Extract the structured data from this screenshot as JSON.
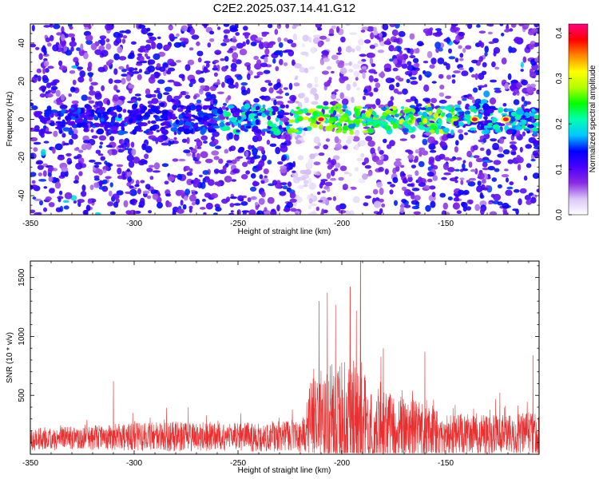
{
  "figure": {
    "title": "C2E2.2025.037.14.41.G12"
  },
  "chart_data": [
    {
      "type": "heatmap",
      "xlabel": "Height of straight line (km)",
      "ylabel": "Frequency (Hz)",
      "xlim": [
        -350,
        -105
      ],
      "ylim": [
        -50,
        50
      ],
      "xticks": [
        -350,
        -300,
        -250,
        -200,
        -150
      ],
      "yticks": [
        -40,
        -20,
        0,
        20,
        40
      ],
      "colorbar": {
        "label": "Normalized spectral amplitude",
        "range": [
          0.0,
          0.42
        ],
        "ticks": [
          0.0,
          0.1,
          0.2,
          0.3,
          0.4
        ],
        "tick_labels": [
          "0.0",
          "0.1",
          "0.2",
          "0.3",
          "0.4"
        ],
        "colormap": [
          "#ffffff",
          "#d9c6f7",
          "#8a2be2",
          "#4b00ff",
          "#0000ff",
          "#00c8ff",
          "#00ffb0",
          "#00ff00",
          "#b4ff00",
          "#ffff00",
          "#ff8800",
          "#ff0000",
          "#ff0080"
        ]
      },
      "features": {
        "signal_band_hz": 0,
        "signal_band_x_range": [
          -260,
          -105
        ],
        "strongest_x": [
          -210,
          -136,
          -121
        ],
        "low_noise_x_ranges": [
          [
            -223,
            -212
          ],
          [
            -198,
            -190
          ]
        ]
      }
    },
    {
      "type": "line",
      "xlabel": "Height of straight line (km)",
      "ylabel": "SNR (10 * v/v)",
      "xlim": [
        -350,
        -105
      ],
      "ylim": [
        0,
        1640
      ],
      "xticks": [
        -350,
        -300,
        -250,
        -200,
        -150
      ],
      "yticks": [
        500,
        1000,
        1500
      ],
      "series_color": "#e83030",
      "profile": [
        {
          "x": -350,
          "base": 130,
          "amp": 130
        },
        {
          "x": -320,
          "base": 140,
          "amp": 140
        },
        {
          "x": -300,
          "base": 150,
          "amp": 160
        },
        {
          "x": -280,
          "base": 150,
          "amp": 170
        },
        {
          "x": -250,
          "base": 145,
          "amp": 160
        },
        {
          "x": -225,
          "base": 155,
          "amp": 180
        },
        {
          "x": -218,
          "base": 160,
          "amp": 200
        },
        {
          "x": -216,
          "base": 300,
          "amp": 420
        },
        {
          "x": -210,
          "base": 330,
          "amp": 520
        },
        {
          "x": -205,
          "base": 330,
          "amp": 600
        },
        {
          "x": -198,
          "base": 310,
          "amp": 560
        },
        {
          "x": -192,
          "base": 330,
          "amp": 700
        },
        {
          "x": -186,
          "base": 260,
          "amp": 420
        },
        {
          "x": -175,
          "base": 230,
          "amp": 380
        },
        {
          "x": -165,
          "base": 210,
          "amp": 330
        },
        {
          "x": -150,
          "base": 170,
          "amp": 230
        },
        {
          "x": -120,
          "base": 165,
          "amp": 230
        },
        {
          "x": -105,
          "base": 170,
          "amp": 260
        }
      ],
      "peaks": [
        {
          "x": -310,
          "y": 620
        },
        {
          "x": -211,
          "y": 1300
        },
        {
          "x": -207,
          "y": 1370
        },
        {
          "x": -203,
          "y": 1270
        },
        {
          "x": -196,
          "y": 1420
        },
        {
          "x": -193,
          "y": 1220
        },
        {
          "x": -191,
          "y": 1640
        },
        {
          "x": -180,
          "y": 900
        },
        {
          "x": -160,
          "y": 870
        },
        {
          "x": -108,
          "y": 840
        }
      ]
    }
  ]
}
